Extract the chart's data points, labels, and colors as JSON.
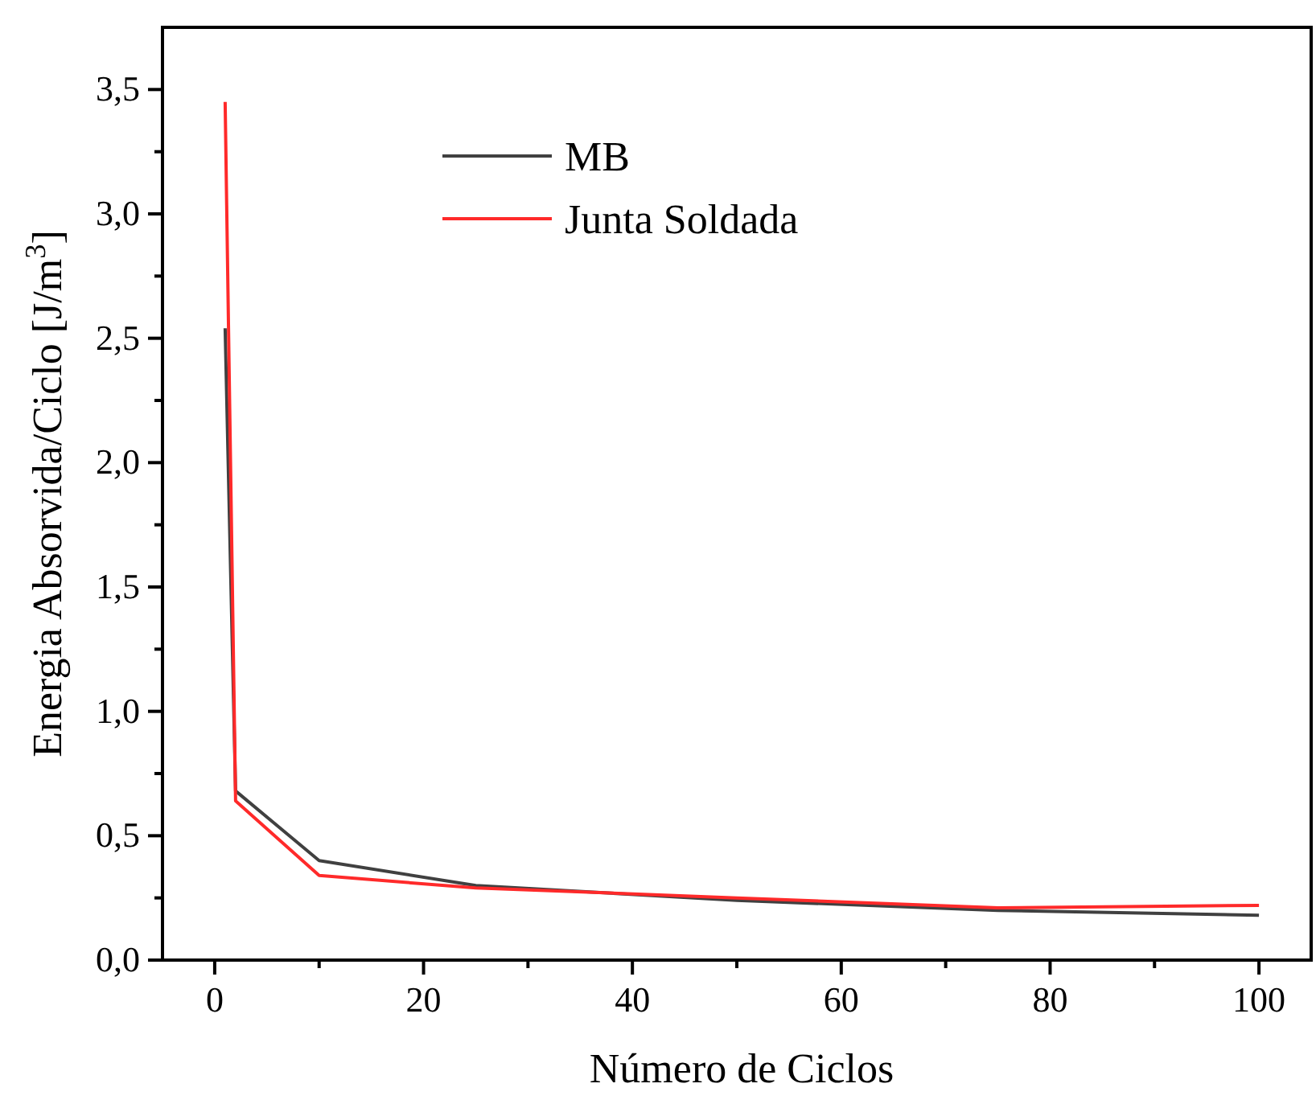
{
  "chart_data": {
    "type": "line",
    "xlabel": "Número de Ciclos",
    "ylabel": "Energia Absorvida/Ciclo [J/m$^{3}$]",
    "x": [
      1,
      2,
      10,
      25,
      50,
      75,
      100
    ],
    "series": [
      {
        "name": "MB",
        "color": "#404040",
        "values": [
          2.54,
          0.68,
          0.4,
          0.3,
          0.24,
          0.2,
          0.18
        ]
      },
      {
        "name": "Junta Soldada",
        "color": "#ff2a2a",
        "values": [
          3.45,
          0.64,
          0.34,
          0.29,
          0.25,
          0.21,
          0.22
        ]
      }
    ],
    "xlim": [
      -5,
      105
    ],
    "xticks": [
      0,
      {
        "value": 10,
        "label": null
      },
      20,
      {
        "value": 30,
        "label": null
      },
      40,
      {
        "value": 50,
        "label": null
      },
      60,
      {
        "value": 70,
        "label": null
      },
      80,
      {
        "value": 90,
        "label": null
      },
      100
    ],
    "ylim": [
      0,
      3.75
    ],
    "yticks": [
      {
        "value": 0,
        "label": "0,0"
      },
      {
        "value": 0.25,
        "label": null
      },
      {
        "value": 0.5,
        "label": "0,5"
      },
      {
        "value": 0.75,
        "label": null
      },
      {
        "value": 1,
        "label": "1,0"
      },
      {
        "value": 1.25,
        "label": null
      },
      {
        "value": 1.5,
        "label": "1,5"
      },
      {
        "value": 1.75,
        "label": null
      },
      {
        "value": 2,
        "label": "2,0"
      },
      {
        "value": 2.25,
        "label": null
      },
      {
        "value": 2.5,
        "label": "2,5"
      },
      {
        "value": 2.75,
        "label": null
      },
      {
        "value": 3,
        "label": "3,0"
      },
      {
        "value": 3.25,
        "label": null
      },
      {
        "value": 3.5,
        "label": "3,5"
      }
    ],
    "grid": false,
    "legend": "top",
    "marker": "none",
    "line_style": "solid"
  }
}
